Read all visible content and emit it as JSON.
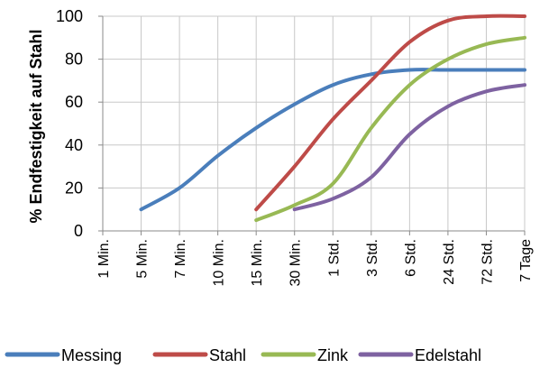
{
  "chart_data": {
    "type": "line",
    "title": "",
    "xlabel": "",
    "ylabel": "% Endfestigkeit auf Stahl",
    "ylim": [
      0,
      100
    ],
    "yticks": [
      0,
      20,
      40,
      60,
      80,
      100
    ],
    "grid": true,
    "legend": "bottom",
    "categories": [
      "1 Min.",
      "5 Min.",
      "7 Min.",
      "10 Min.",
      "15 Min.",
      "30 Min.",
      "1 Std.",
      "3 Std.",
      "6 Std.",
      "24 Std.",
      "72 Std.",
      "7 Tage"
    ],
    "series": [
      {
        "name": "Messing",
        "color": "#4a7ebb",
        "values": [
          null,
          10,
          20,
          35,
          48,
          59,
          68,
          73,
          75,
          75,
          75,
          75
        ]
      },
      {
        "name": "Stahl",
        "color": "#be4b48",
        "values": [
          null,
          null,
          null,
          null,
          10,
          30,
          52,
          70,
          88,
          98,
          100,
          100
        ]
      },
      {
        "name": "Zink",
        "color": "#98b954",
        "values": [
          null,
          null,
          null,
          null,
          5,
          12,
          22,
          48,
          68,
          80,
          87,
          90
        ]
      },
      {
        "name": "Edelstahl",
        "color": "#7e62a1",
        "values": [
          null,
          null,
          null,
          null,
          null,
          10,
          15,
          25,
          45,
          58,
          65,
          68
        ]
      }
    ]
  }
}
